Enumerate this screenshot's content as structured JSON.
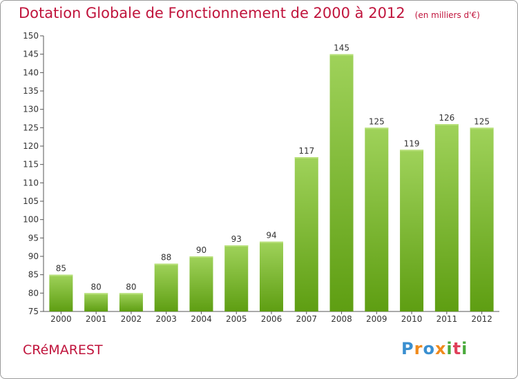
{
  "title": "Dotation Globale de Fonctionnement de 2000 à 2012",
  "subtitle": "(en milliers d'€)",
  "commune": "CRéMAREST",
  "logo": {
    "letters": [
      "P",
      "r",
      "o",
      "x",
      "i",
      "t",
      "i"
    ],
    "colors": [
      "#3a8fd0",
      "#f08a1c",
      "#3a8fd0",
      "#f08a1c",
      "#4aaa3c",
      "#e0405a",
      "#4aaa3c"
    ]
  },
  "colors": {
    "bar_top": "#9fd25a",
    "bar_bottom": "#5e9e12",
    "text_accent": "#c0143c"
  },
  "chart_data": {
    "type": "bar",
    "title": "Dotation Globale de Fonctionnement de 2000 à 2012",
    "subtitle": "(en milliers d'€)",
    "categories": [
      "2000",
      "2001",
      "2002",
      "2003",
      "2004",
      "2005",
      "2006",
      "2007",
      "2008",
      "2009",
      "2010",
      "2011",
      "2012"
    ],
    "values": [
      85,
      80,
      80,
      88,
      90,
      93,
      94,
      117,
      145,
      125,
      119,
      126,
      125
    ],
    "ylim": [
      75,
      150
    ],
    "yticks": [
      75,
      80,
      85,
      90,
      95,
      100,
      105,
      110,
      115,
      120,
      125,
      130,
      135,
      140,
      145,
      150
    ],
    "grid": false,
    "xlabel": "",
    "ylabel": ""
  }
}
